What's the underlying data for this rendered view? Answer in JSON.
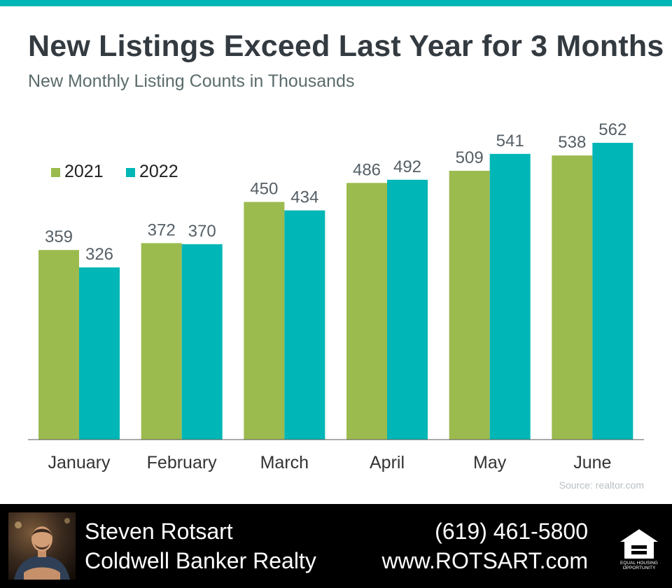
{
  "header": {
    "title": "New Listings Exceed Last Year for 3 Months",
    "subtitle": "New Monthly Listing Counts in Thousands"
  },
  "colors": {
    "series_2021": "#9bbb4f",
    "series_2022": "#00b6b6",
    "accent_band": "#00b6b6",
    "text_dark": "#333a40",
    "text_muted": "#5b6b6b"
  },
  "chart_data": {
    "type": "bar",
    "title": "New Listings Exceed Last Year for 3 Months",
    "subtitle": "New Monthly Listing Counts in Thousands",
    "categories": [
      "January",
      "February",
      "March",
      "April",
      "May",
      "June"
    ],
    "series": [
      {
        "name": "2021",
        "values": [
          359,
          372,
          450,
          486,
          509,
          538
        ]
      },
      {
        "name": "2022",
        "values": [
          326,
          370,
          434,
          492,
          541,
          562
        ]
      }
    ],
    "ylim": [
      0,
      562
    ],
    "grid": false,
    "legend": "top-left",
    "data_labels": true
  },
  "source": "Source: realtor.com",
  "footer": {
    "agent_name": "Steven Rotsart",
    "company": "Coldwell Banker Realty",
    "phone": "(619) 461-5800",
    "website": "www.ROTSART.com",
    "logo_text": "EQUAL HOUSING OPPORTUNITY"
  }
}
